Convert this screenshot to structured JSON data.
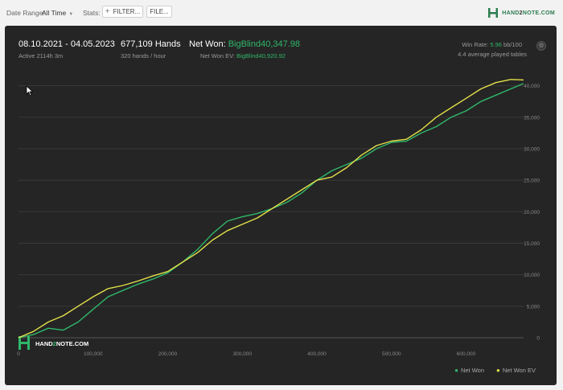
{
  "toolbar": {
    "date_range_label": "Date Range:",
    "date_range_value": "All Time",
    "stats_label": "Stats:",
    "filter_button": "FILTER...",
    "file_button": "FILE...",
    "logo_text_a": "HAND",
    "logo_text_b": "2",
    "logo_text_c": "NOTE.COM"
  },
  "summary": {
    "date_span": "08.10.2021 - 04.05.2023",
    "active_time": "Active 2114h 3m",
    "hands": "677,109 Hands",
    "hands_rate": "320 hands / hour",
    "net_won_label": "Net Won:",
    "net_won_value": "BigBlind40,347.98",
    "net_won_ev_label": "Net Won  EV:",
    "net_won_ev_value": "BigBlind40,920.92",
    "win_rate_label": "Win Rate:",
    "win_rate_value": "5.96",
    "win_rate_unit": "bb/100",
    "avg_tables": "4.4 average played tables"
  },
  "watermark": {
    "text_a": "HAND",
    "text_b": "2",
    "text_c": "NOTE.COM"
  },
  "colors": {
    "net_won": "#2fb76a",
    "net_won_ev": "#e2e04a",
    "panel_bg": "#252525",
    "grid": "#3a3a3a"
  },
  "chart_data": {
    "type": "line",
    "xlabel": "",
    "ylabel": "",
    "xlim": [
      0,
      677109
    ],
    "ylim": [
      0,
      42500
    ],
    "x_ticks": [
      "0",
      "100,000",
      "200,000",
      "300,000",
      "400,000",
      "500,000",
      "600,000"
    ],
    "y_ticks": [
      "0",
      "5,000",
      "10,000",
      "15,000",
      "20,000",
      "25,000",
      "30,000",
      "35,000",
      "40,000"
    ],
    "legend_position": "bottom-right",
    "series": [
      {
        "name": "Net Won",
        "x": [
          0,
          20000,
          40000,
          60000,
          80000,
          100000,
          120000,
          140000,
          160000,
          180000,
          200000,
          220000,
          240000,
          260000,
          280000,
          300000,
          320000,
          340000,
          360000,
          380000,
          400000,
          420000,
          440000,
          460000,
          480000,
          500000,
          520000,
          540000,
          560000,
          580000,
          600000,
          620000,
          640000,
          660000,
          677109
        ],
        "y": [
          0,
          500,
          1500,
          1200,
          2500,
          4500,
          6500,
          7500,
          8500,
          9300,
          10300,
          12000,
          14000,
          16500,
          18500,
          19200,
          19700,
          20500,
          21500,
          23000,
          25000,
          26500,
          27500,
          28500,
          30000,
          31000,
          31200,
          32500,
          33500,
          35000,
          36000,
          37500,
          38500,
          39500,
          40348
        ]
      },
      {
        "name": "Net Won  EV",
        "x": [
          0,
          20000,
          40000,
          60000,
          80000,
          100000,
          120000,
          140000,
          160000,
          180000,
          200000,
          220000,
          240000,
          260000,
          280000,
          300000,
          320000,
          340000,
          360000,
          380000,
          400000,
          420000,
          440000,
          460000,
          480000,
          500000,
          520000,
          540000,
          560000,
          580000,
          600000,
          620000,
          640000,
          660000,
          677109
        ],
        "y": [
          0,
          1000,
          2500,
          3500,
          5000,
          6500,
          7800,
          8300,
          9000,
          9800,
          10500,
          12000,
          13500,
          15500,
          17000,
          18000,
          19000,
          20500,
          22000,
          23500,
          25000,
          25500,
          27000,
          29000,
          30500,
          31200,
          31500,
          33000,
          35000,
          36500,
          38000,
          39500,
          40500,
          41000,
          40921
        ]
      }
    ]
  }
}
